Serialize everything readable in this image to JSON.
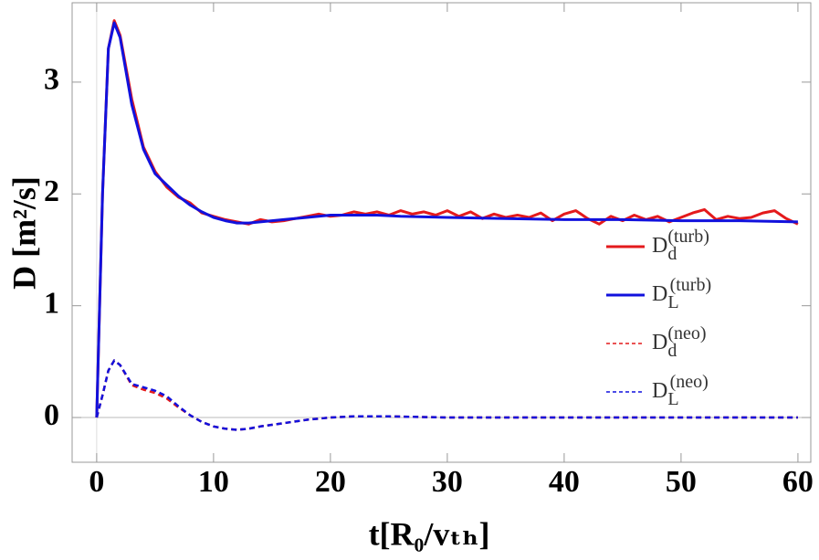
{
  "chart_data": {
    "type": "line",
    "xlabel": "t[R₀/vₜₕ]",
    "ylabel": "D [m²/s]",
    "xlim": [
      -2.1,
      61.1
    ],
    "ylim": [
      -0.4,
      3.71
    ],
    "xticks": [
      0,
      10,
      20,
      30,
      40,
      50,
      60
    ],
    "yticks": [
      0,
      1,
      2,
      3
    ],
    "series": [
      {
        "name": "Dd(turb)",
        "color": "#e41a1c",
        "dash": false,
        "x": [
          0,
          0.5,
          1,
          1.5,
          2,
          3,
          4,
          5,
          6,
          7,
          8,
          9,
          10,
          11,
          12,
          13,
          14,
          15,
          16,
          17,
          18,
          19,
          20,
          21,
          22,
          23,
          24,
          25,
          26,
          27,
          28,
          29,
          30,
          31,
          32,
          33,
          34,
          35,
          36,
          37,
          38,
          39,
          40,
          41,
          42,
          43,
          44,
          45,
          46,
          47,
          48,
          49,
          50,
          51,
          52,
          53,
          54,
          55,
          56,
          57,
          58,
          59,
          60
        ],
        "values": [
          0,
          2.0,
          3.3,
          3.55,
          3.42,
          2.85,
          2.42,
          2.2,
          2.06,
          1.97,
          1.92,
          1.83,
          1.8,
          1.77,
          1.75,
          1.73,
          1.77,
          1.75,
          1.76,
          1.78,
          1.8,
          1.82,
          1.8,
          1.81,
          1.84,
          1.82,
          1.84,
          1.81,
          1.85,
          1.82,
          1.84,
          1.81,
          1.85,
          1.8,
          1.84,
          1.78,
          1.82,
          1.79,
          1.81,
          1.79,
          1.83,
          1.76,
          1.82,
          1.85,
          1.78,
          1.73,
          1.8,
          1.76,
          1.81,
          1.77,
          1.8,
          1.75,
          1.79,
          1.83,
          1.86,
          1.77,
          1.8,
          1.78,
          1.79,
          1.83,
          1.85,
          1.78,
          1.73
        ]
      },
      {
        "name": "DL(turb)",
        "color": "#1111dd",
        "dash": false,
        "x": [
          0,
          0.5,
          1,
          1.5,
          2,
          3,
          4,
          5,
          6,
          7,
          8,
          9,
          10,
          11,
          12,
          13,
          14,
          15,
          16,
          18,
          20,
          22,
          24,
          26,
          30,
          35,
          40,
          45,
          50,
          55,
          60
        ],
        "values": [
          0,
          2.0,
          3.3,
          3.53,
          3.4,
          2.8,
          2.4,
          2.18,
          2.08,
          1.98,
          1.9,
          1.84,
          1.79,
          1.76,
          1.74,
          1.74,
          1.75,
          1.76,
          1.77,
          1.79,
          1.81,
          1.81,
          1.81,
          1.8,
          1.79,
          1.78,
          1.77,
          1.77,
          1.76,
          1.76,
          1.75
        ]
      },
      {
        "name": "Dd(neo)",
        "color": "#e41a1c",
        "dash": true,
        "x": [
          0,
          0.5,
          1,
          1.5,
          2,
          3,
          4,
          5,
          6,
          7,
          8,
          9,
          10,
          11,
          12,
          13,
          14,
          16,
          18,
          20,
          22,
          25,
          30,
          40,
          50,
          60
        ],
        "values": [
          0,
          0.2,
          0.42,
          0.51,
          0.47,
          0.29,
          0.25,
          0.22,
          0.17,
          0.09,
          0.02,
          -0.04,
          -0.08,
          -0.1,
          -0.11,
          -0.1,
          -0.08,
          -0.05,
          -0.02,
          0,
          0.01,
          0.01,
          0,
          0,
          0,
          0
        ]
      },
      {
        "name": "DL(neo)",
        "color": "#1111dd",
        "dash": true,
        "x": [
          0,
          0.5,
          1,
          1.5,
          2,
          3,
          4,
          5,
          6,
          7,
          8,
          9,
          10,
          11,
          12,
          13,
          14,
          16,
          18,
          20,
          22,
          25,
          30,
          40,
          50,
          60
        ],
        "values": [
          0,
          0.2,
          0.42,
          0.51,
          0.47,
          0.3,
          0.27,
          0.24,
          0.19,
          0.1,
          0.02,
          -0.04,
          -0.08,
          -0.1,
          -0.11,
          -0.1,
          -0.08,
          -0.05,
          -0.02,
          0,
          0.01,
          0.01,
          0,
          0,
          0,
          0
        ]
      }
    ]
  }
}
